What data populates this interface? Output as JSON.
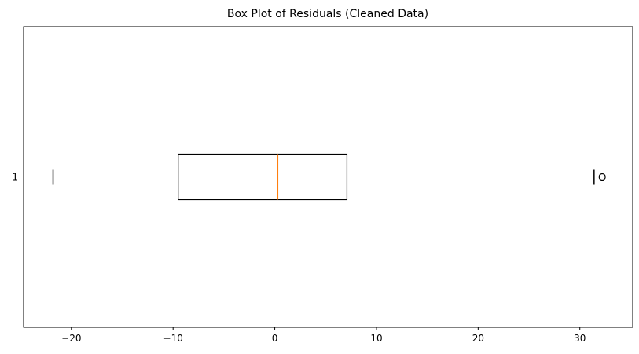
{
  "chart_data": {
    "type": "boxplot",
    "orientation": "horizontal",
    "title": "Box Plot of Residuals (Cleaned Data)",
    "xlabel": "",
    "ylabel": "",
    "xlim": [
      -24.7,
      35.2
    ],
    "ylim": [
      0.5,
      1.5
    ],
    "grid": false,
    "x_ticks": [
      -20,
      -10,
      0,
      10,
      20,
      30
    ],
    "x_tick_labels": [
      "−20",
      "−10",
      "0",
      "10",
      "20",
      "30"
    ],
    "y_ticks": [
      1
    ],
    "y_tick_labels": [
      "1"
    ],
    "boxes": [
      {
        "position": 1,
        "whisker_low": -21.8,
        "q1": -9.5,
        "median": 0.3,
        "q3": 7.1,
        "whisker_high": 31.4,
        "outliers": [
          32.2
        ]
      }
    ],
    "colors": {
      "box": "#000000",
      "median": "#ff7f0e",
      "whisker": "#000000",
      "outlier": "#000000"
    }
  }
}
